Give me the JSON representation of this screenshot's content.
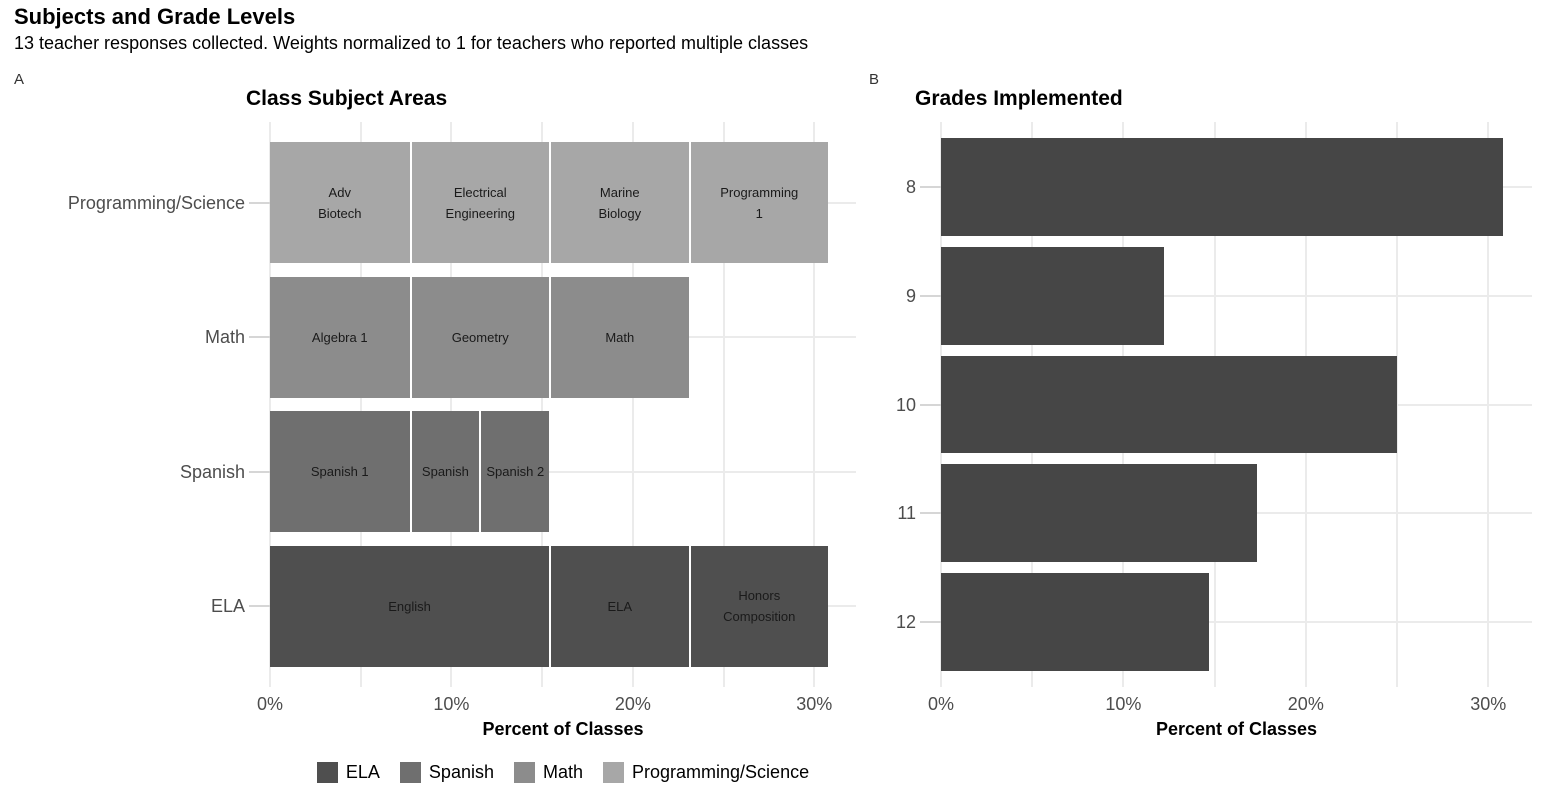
{
  "header": {
    "title": "Subjects and Grade Levels",
    "subtitle": "13 teacher responses collected. Weights normalized to 1 for teachers who reported multiple classes"
  },
  "panels": [
    {
      "tag": "A",
      "title": "Class Subject Areas",
      "xlabel": "Percent of Classes"
    },
    {
      "tag": "B",
      "title": "Grades Implemented",
      "xlabel": "Percent of Classes"
    }
  ],
  "colors": {
    "ela": "#4f4f4f",
    "spanish": "#6f6f6f",
    "math": "#8c8c8c",
    "programming_science": "#a7a7a7",
    "grade_bar": "#464646",
    "gridline": "#ebebeb",
    "axis_tick": "#d6d6d6",
    "axis_text": "#4d4d4d"
  },
  "legend": {
    "items": [
      {
        "label": "ELA",
        "color": "#4f4f4f"
      },
      {
        "label": "Spanish",
        "color": "#6f6f6f"
      },
      {
        "label": "Math",
        "color": "#8c8c8c"
      },
      {
        "label": "Programming/Science",
        "color": "#a7a7a7"
      }
    ]
  },
  "chart_data": [
    {
      "type": "bar",
      "subtype": "stacked-horizontal",
      "title": "Class Subject Areas",
      "xlabel": "Percent of Classes",
      "ylabel": "",
      "xlim": [
        0,
        32.3
      ],
      "gridline_step": 5,
      "grid": true,
      "x_ticks": [
        {
          "value": 0,
          "label": "0%"
        },
        {
          "value": 10,
          "label": "10%"
        },
        {
          "value": 20,
          "label": "20%"
        },
        {
          "value": 30,
          "label": "30%"
        }
      ],
      "categories": [
        "Programming/Science",
        "Math",
        "Spanish",
        "ELA"
      ],
      "rows": [
        {
          "category": "Programming/Science",
          "color": "#a7a7a7",
          "total": 30.77,
          "segments": [
            {
              "label": "Adv Biotech",
              "lines": [
                "Adv",
                "Biotech"
              ],
              "value": 7.69
            },
            {
              "label": "Electrical Engineering",
              "lines": [
                "Electrical",
                "Engineering"
              ],
              "value": 7.69
            },
            {
              "label": "Marine Biology",
              "lines": [
                "Marine",
                "Biology"
              ],
              "value": 7.69
            },
            {
              "label": "Programming 1",
              "lines": [
                "Programming",
                "1"
              ],
              "value": 7.69
            }
          ]
        },
        {
          "category": "Math",
          "color": "#8c8c8c",
          "total": 23.08,
          "segments": [
            {
              "label": "Algebra 1",
              "lines": [
                "Algebra 1"
              ],
              "value": 7.69
            },
            {
              "label": "Geometry",
              "lines": [
                "Geometry"
              ],
              "value": 7.69
            },
            {
              "label": "Math",
              "lines": [
                "Math"
              ],
              "value": 7.69
            }
          ]
        },
        {
          "category": "Spanish",
          "color": "#6f6f6f",
          "total": 15.38,
          "segments": [
            {
              "label": "Spanish 1",
              "lines": [
                "Spanish 1"
              ],
              "value": 7.69
            },
            {
              "label": "Spanish",
              "lines": [
                "Spanish"
              ],
              "value": 3.85
            },
            {
              "label": "Spanish 2",
              "lines": [
                "Spanish 2"
              ],
              "value": 3.85
            }
          ]
        },
        {
          "category": "ELA",
          "color": "#4f4f4f",
          "total": 30.77,
          "segments": [
            {
              "label": "English",
              "lines": [
                "English"
              ],
              "value": 15.38
            },
            {
              "label": "ELA",
              "lines": [
                "ELA"
              ],
              "value": 7.69
            },
            {
              "label": "Honors Composition",
              "lines": [
                "Honors",
                "Composition"
              ],
              "value": 7.69
            }
          ]
        }
      ],
      "legend_entries": [
        "ELA",
        "Spanish",
        "Math",
        "Programming/Science"
      ],
      "legend_position": "bottom"
    },
    {
      "type": "bar",
      "subtype": "horizontal",
      "title": "Grades Implemented",
      "xlabel": "Percent of Classes",
      "ylabel": "",
      "xlim": [
        0,
        32.4
      ],
      "gridline_step": 5,
      "grid": true,
      "x_ticks": [
        {
          "value": 0,
          "label": "0%"
        },
        {
          "value": 10,
          "label": "10%"
        },
        {
          "value": 20,
          "label": "20%"
        },
        {
          "value": 30,
          "label": "30%"
        }
      ],
      "categories": [
        "8",
        "9",
        "10",
        "11",
        "12"
      ],
      "values": [
        30.8,
        12.2,
        25.0,
        17.3,
        14.7
      ],
      "bar_color": "#464646"
    }
  ]
}
